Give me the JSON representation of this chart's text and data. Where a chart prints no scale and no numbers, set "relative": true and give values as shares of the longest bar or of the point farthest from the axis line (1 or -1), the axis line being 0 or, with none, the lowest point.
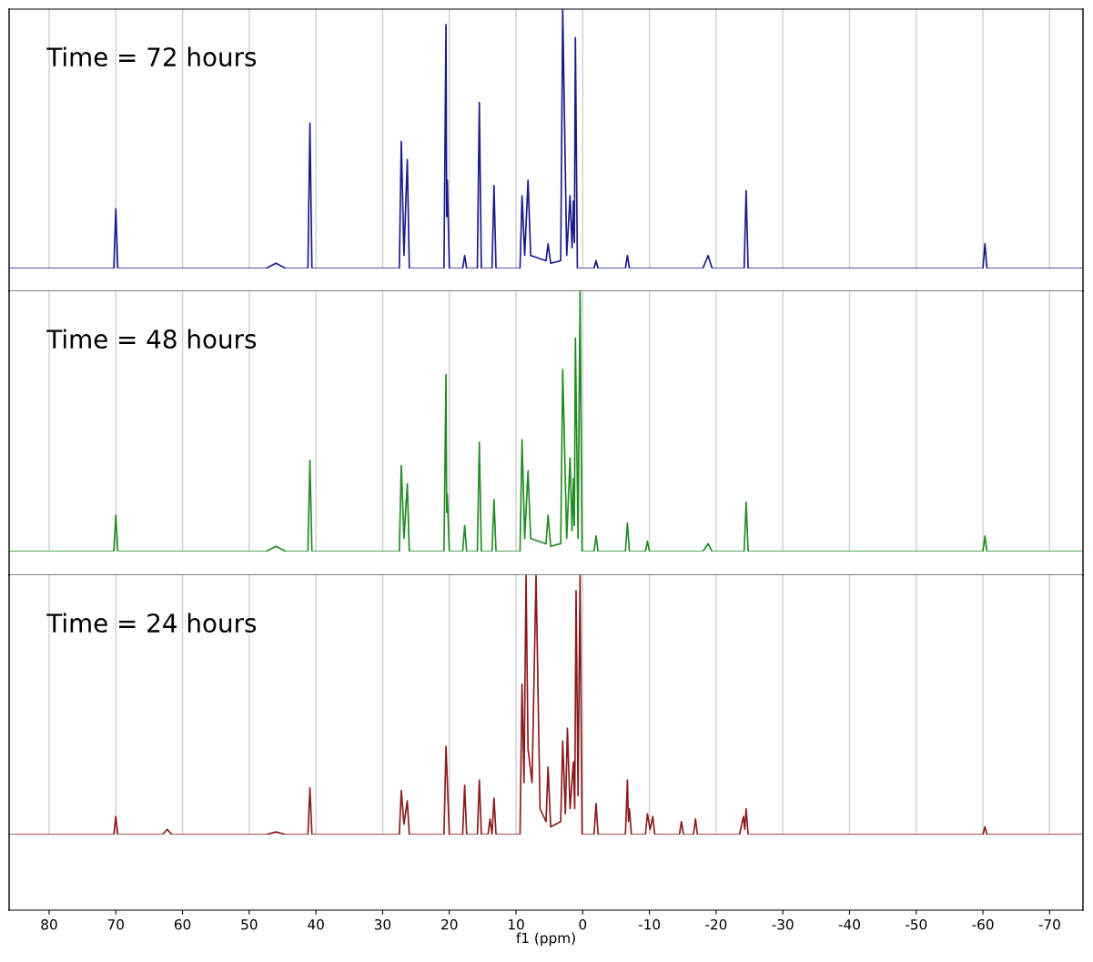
{
  "chart_data": [
    {
      "type": "line",
      "relative": true,
      "xlim": [
        86,
        -75
      ],
      "xticks": [
        80,
        70,
        60,
        50,
        40,
        30,
        20,
        10,
        0,
        -10,
        -20,
        -30,
        -40,
        -50,
        -60,
        -70
      ],
      "grid": "x",
      "tick_labels": false,
      "annotations": [
        "Time = 72 hours"
      ],
      "series": [
        {
          "color": "#1a1a8c",
          "x": [
            86,
            70.3,
            70,
            69.7,
            47.5,
            46,
            44.5,
            41.2,
            40.9,
            40.6,
            27.5,
            27.2,
            26.8,
            26.3,
            26.0,
            20.8,
            20.5,
            20.4,
            20.3,
            20.0,
            18.0,
            17.7,
            17.4,
            15.8,
            15.5,
            15.2,
            13.6,
            13.3,
            13.0,
            9.4,
            9.1,
            8.7,
            8.2,
            7.8,
            5.5,
            5.2,
            4.8,
            3.3,
            3.0,
            2.4,
            1.9,
            1.6,
            1.4,
            1.25,
            1.1,
            0.8,
            -1.7,
            -2,
            -2.3,
            -6.4,
            -6.7,
            -7.0,
            -18.0,
            -18.8,
            -19.4,
            -24.2,
            -24.5,
            -24.8,
            -60.0,
            -60.3,
            -60.6,
            -75
          ],
          "values": [
            0,
            0,
            0.23,
            0,
            0,
            0.02,
            0,
            0,
            0.56,
            0,
            0,
            0.49,
            0.05,
            0.42,
            0,
            0,
            0.94,
            0.2,
            0.34,
            0,
            0,
            0.05,
            0,
            0,
            0.64,
            0,
            0,
            0.32,
            0,
            0,
            0.28,
            0.05,
            0.34,
            0.05,
            0.03,
            0.095,
            0.02,
            0.03,
            1,
            0.05,
            0.28,
            0.08,
            0.26,
            0.1,
            0.89,
            0,
            0,
            0.03,
            0,
            0,
            0.05,
            0,
            0,
            0.05,
            0,
            0,
            0.3,
            0,
            0,
            0.095,
            0,
            0
          ]
        }
      ]
    },
    {
      "type": "line",
      "relative": true,
      "xlim": [
        86,
        -75
      ],
      "xticks": [
        80,
        70,
        60,
        50,
        40,
        30,
        20,
        10,
        0,
        -10,
        -20,
        -30,
        -40,
        -50,
        -60,
        -70
      ],
      "grid": "x",
      "tick_labels": false,
      "annotations": [
        "Time = 48 hours"
      ],
      "series": [
        {
          "color": "#228b22",
          "x": [
            86,
            70.3,
            70,
            69.7,
            47.5,
            46,
            44.5,
            41.2,
            40.9,
            40.6,
            27.5,
            27.2,
            26.8,
            26.3,
            26.0,
            20.8,
            20.5,
            20.4,
            20.3,
            20.0,
            18.0,
            17.7,
            17.4,
            15.8,
            15.5,
            15.2,
            13.6,
            13.3,
            13.0,
            9.4,
            9.1,
            8.7,
            8.2,
            7.8,
            5.5,
            5.2,
            4.8,
            3.3,
            3.0,
            2.4,
            1.9,
            1.6,
            1.4,
            1.25,
            1.1,
            0.7,
            0.4,
            0.1,
            -1.7,
            -2,
            -2.3,
            -6.4,
            -6.7,
            -7.0,
            -9.4,
            -9.7,
            -10.0,
            -18.0,
            -18.8,
            -19.4,
            -24.2,
            -24.5,
            -24.8,
            -60.0,
            -60.3,
            -60.6,
            -75
          ],
          "values": [
            0,
            0,
            0.14,
            0,
            0,
            0.02,
            0,
            0,
            0.35,
            0,
            0,
            0.33,
            0.05,
            0.26,
            0,
            0,
            0.68,
            0.15,
            0.22,
            0,
            0,
            0.1,
            0,
            0,
            0.42,
            0,
            0,
            0.2,
            0,
            0,
            0.43,
            0.05,
            0.31,
            0.05,
            0.03,
            0.14,
            0.02,
            0.03,
            0.7,
            0.05,
            0.36,
            0.08,
            0.28,
            0.1,
            0.82,
            0.05,
            1,
            0,
            0,
            0.06,
            0,
            0,
            0.11,
            0,
            0,
            0.04,
            0,
            0,
            0.03,
            0,
            0,
            0.19,
            0,
            0,
            0.06,
            0,
            0
          ]
        }
      ]
    },
    {
      "type": "line",
      "relative": true,
      "xlim": [
        86,
        -75
      ],
      "xticks": [
        80,
        70,
        60,
        50,
        40,
        30,
        20,
        10,
        0,
        -10,
        -20,
        -30,
        -40,
        -50,
        -60,
        -70
      ],
      "grid": "x",
      "tick_labels": "x",
      "xlabel": "f1 (ppm)",
      "annotations": [
        "Time = 24 hours"
      ],
      "series": [
        {
          "color": "#8b1a1a",
          "x": [
            86,
            70.3,
            70,
            69.7,
            63,
            62.3,
            61.6,
            47.5,
            46,
            44.5,
            41.2,
            40.9,
            40.6,
            27.5,
            27.2,
            26.8,
            26.3,
            26.0,
            20.8,
            20.5,
            20.0,
            18.0,
            17.7,
            17.4,
            15.8,
            15.5,
            15.2,
            14.2,
            13.9,
            13.6,
            13.3,
            13.0,
            9.4,
            9.1,
            8.8,
            8.5,
            8.2,
            7.6,
            7.0,
            6.4,
            5.5,
            5.2,
            4.8,
            3.3,
            3.0,
            2.6,
            2.3,
            1.9,
            1.4,
            1.2,
            1.0,
            0.7,
            0.4,
            0.1,
            -1.7,
            -2,
            -2.3,
            -6.4,
            -6.7,
            -6.85,
            -7.0,
            -7.3,
            -9.4,
            -9.7,
            -10.1,
            -10.5,
            -10.8,
            -14.5,
            -14.8,
            -15.1,
            -16.6,
            -16.9,
            -17.2,
            -23.5,
            -24.1,
            -24.3,
            -24.5,
            -24.8,
            -60.0,
            -60.3,
            -60.6,
            -75
          ],
          "values": [
            0,
            0,
            0.07,
            0,
            0,
            0.02,
            0,
            0,
            0.01,
            0,
            0,
            0.18,
            0,
            0,
            0.17,
            0.04,
            0.13,
            0,
            0,
            0.34,
            0,
            0,
            0.19,
            0,
            0,
            0.21,
            0,
            0,
            0.06,
            0,
            0.14,
            0,
            0,
            0.58,
            0.2,
            1,
            0.33,
            0.2,
            1,
            0.1,
            0.05,
            0.26,
            0.03,
            0.05,
            0.36,
            0.08,
            0.41,
            0.1,
            0.28,
            0.1,
            0.94,
            0.15,
            1,
            0,
            0,
            0.12,
            0,
            0,
            0.21,
            0.05,
            0.1,
            0,
            0,
            0.08,
            0.02,
            0.07,
            0,
            0,
            0.05,
            0,
            0,
            0.06,
            0,
            0,
            0.07,
            0.02,
            0.1,
            0,
            0,
            0.03,
            0,
            0
          ]
        }
      ]
    }
  ]
}
